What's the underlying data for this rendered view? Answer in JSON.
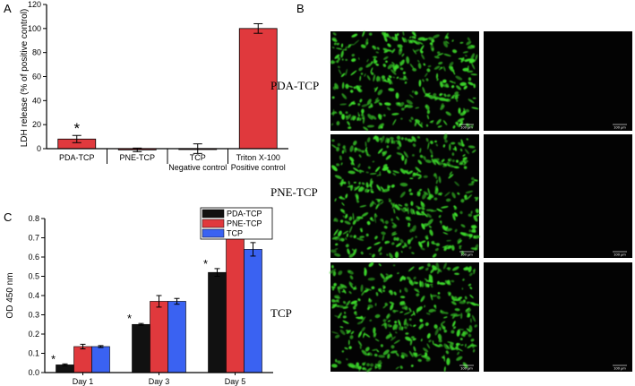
{
  "panels": {
    "a": "A",
    "b": "B",
    "c": "C"
  },
  "colors": {
    "bar_red": "#e0393d",
    "bar_black": "#111111",
    "bar_blue": "#3a62f2",
    "micro_bg": "#030303",
    "cell_green": "#3ddc2b"
  },
  "chart_data": [
    {
      "type": "bar",
      "ylabel": "LDH release  (% of positive control)",
      "ylim": [
        0,
        120
      ],
      "yticks": [
        0,
        20,
        40,
        60,
        80,
        100,
        120
      ],
      "categories": [
        "PDA-TCP",
        "PNE-TCP",
        "TCP",
        "Triton X-100"
      ],
      "sublabels": [
        "",
        "",
        "Negative control",
        "Positive control"
      ],
      "values": [
        8,
        -1,
        0,
        100
      ],
      "errors": [
        3,
        1.5,
        4,
        4
      ],
      "significance": [
        "*",
        "",
        "",
        ""
      ],
      "color": "#e0393d"
    },
    {
      "type": "bar",
      "ylabel": "OD 450 nm",
      "ylim": [
        0,
        0.8
      ],
      "yticks": [
        "0.0",
        "0.1",
        "0.2",
        "0.3",
        "0.4",
        "0.5",
        "0.6",
        "0.7",
        "0.8"
      ],
      "categories": [
        "Day 1",
        "Day 3",
        "Day 5"
      ],
      "legend_position": "top-left",
      "series": [
        {
          "name": "PDA-TCP",
          "color": "#111111",
          "values": [
            0.04,
            0.25,
            0.52
          ],
          "errors": [
            0.005,
            0.005,
            0.02
          ],
          "significance": [
            "*",
            "*",
            "*"
          ]
        },
        {
          "name": "PNE-TCP",
          "color": "#e0393d",
          "values": [
            0.135,
            0.37,
            0.755
          ],
          "errors": [
            0.012,
            0.03,
            0.015
          ],
          "significance": [
            "",
            "",
            "*"
          ]
        },
        {
          "name": "TCP",
          "color": "#3a62f2",
          "values": [
            0.135,
            0.37,
            0.64
          ],
          "errors": [
            0.005,
            0.015,
            0.035
          ],
          "significance": [
            "",
            "",
            ""
          ]
        }
      ]
    }
  ],
  "micrographs": {
    "rows": [
      "PDA-TCP",
      "PNE-TCP",
      "TCP"
    ],
    "scale_bar": "100 μm"
  }
}
